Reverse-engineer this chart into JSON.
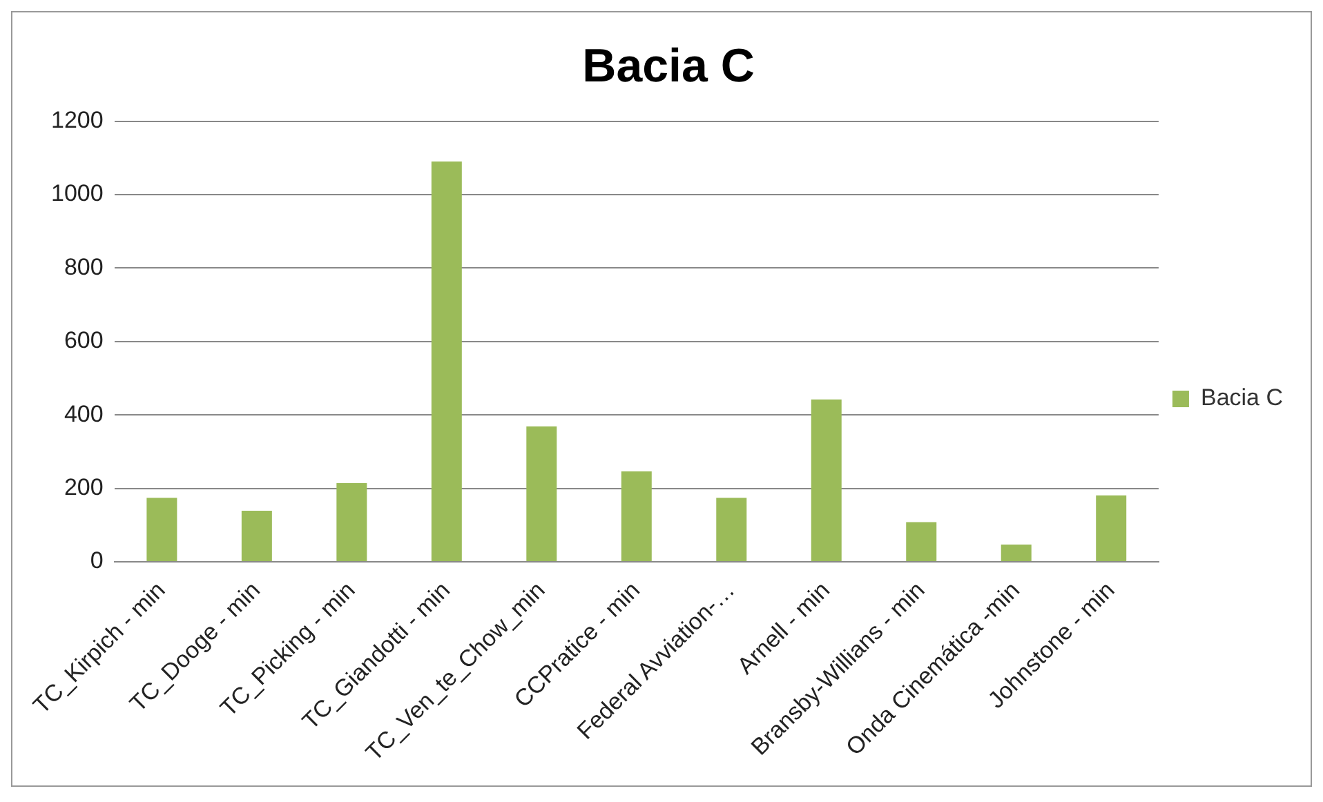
{
  "chart_data": {
    "type": "bar",
    "title": "Bacia C",
    "categories": [
      "TC_Kirpich - min",
      "TC_Dooge - min",
      "TC_Picking - min",
      "TC_Giandotti - min",
      "TC_Ven_te_Chow_min",
      "CCPratice - min",
      "Federal Avviation-…",
      "Arnell - min",
      "Bransby-Willians - min",
      "Onda Cinemática -min",
      "Johnstone - min"
    ],
    "series": [
      {
        "name": "Bacia C",
        "color": "#9bbb59",
        "values": [
          174,
          139,
          214,
          1090,
          369,
          246,
          174,
          442,
          108,
          47,
          181
        ]
      }
    ],
    "ylim": [
      0,
      1200
    ],
    "yticks": [
      0,
      200,
      400,
      600,
      800,
      1000,
      1200
    ],
    "grid": "y",
    "legend": "right"
  }
}
